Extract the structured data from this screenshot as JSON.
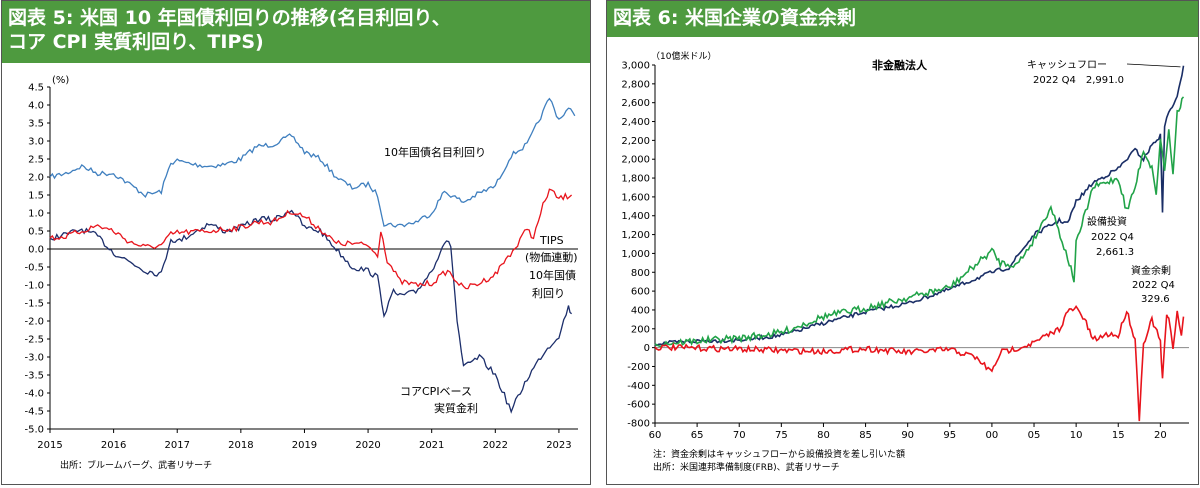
{
  "panels": [
    {
      "title_line1": "図表 5: 米国 10 年国債利回りの推移(名目利回り、",
      "title_line2": "コア CPI 実質利回り、TIPS)",
      "unit": "(%)",
      "source": "出所：ブルームバーグ、武者リサーチ"
    },
    {
      "title_line1": "図表 6: 米国企業の資金余剰",
      "unit": "（10億米ドル）",
      "subtitle": "非金融法人",
      "note": "注：資金余剰はキャッシュフローから設備投資を差し引いた額",
      "source": "出所：米国連邦準備制度(FRB)、武者リサーチ"
    }
  ],
  "chart_data": [
    {
      "type": "line",
      "title": "米国 10 年国債利回りの推移(名目利回り、コア CPI 実質利回り、TIPS)",
      "ylabel": "(%)",
      "ylim": [
        -5.0,
        4.5
      ],
      "yticks": [
        "4.5",
        "4.0",
        "3.5",
        "3.0",
        "2.5",
        "2.0",
        "1.5",
        "1.0",
        "0.5",
        "0.0",
        "-0.5",
        "-1.0",
        "-1.5",
        "-2.0",
        "-2.5",
        "-3.0",
        "-3.5",
        "-4.0",
        "-4.5",
        "-5.0"
      ],
      "xticks": [
        "2015",
        "2016",
        "2017",
        "2018",
        "2019",
        "2020",
        "2021",
        "2022",
        "2023"
      ],
      "annotations": {
        "nominal": "10年国債名目利回り",
        "tips_1": "TIPS",
        "tips_2": "(物価連動)",
        "tips_3": "10年国債",
        "tips_4": "利回り",
        "core_1": "コアCPIベース",
        "core_2": "実質金利"
      },
      "series": [
        {
          "name": "10年国債名目利回り",
          "color": "#3f7fbf",
          "x": [
            2015.0,
            2015.25,
            2015.5,
            2015.75,
            2016.0,
            2016.25,
            2016.5,
            2016.75,
            2016.9,
            2017.0,
            2017.25,
            2017.5,
            2017.75,
            2018.0,
            2018.25,
            2018.5,
            2018.8,
            2019.0,
            2019.25,
            2019.5,
            2019.75,
            2020.0,
            2020.15,
            2020.25,
            2020.5,
            2020.75,
            2021.0,
            2021.2,
            2021.5,
            2021.75,
            2022.0,
            2022.25,
            2022.5,
            2022.75,
            2022.85,
            2023.0,
            2023.15,
            2023.25
          ],
          "y": [
            2.0,
            2.1,
            2.3,
            2.1,
            2.1,
            1.8,
            1.5,
            1.6,
            2.4,
            2.45,
            2.35,
            2.3,
            2.35,
            2.5,
            2.85,
            2.9,
            3.15,
            2.7,
            2.5,
            2.0,
            1.7,
            1.8,
            1.5,
            0.7,
            0.65,
            0.75,
            1.0,
            1.6,
            1.3,
            1.55,
            1.75,
            2.6,
            2.9,
            3.8,
            4.2,
            3.6,
            3.9,
            3.7
          ]
        },
        {
          "name": "コアCPIベース実質金利",
          "color": "#1c2e6b",
          "x": [
            2015.0,
            2015.25,
            2015.5,
            2015.75,
            2016.0,
            2016.2,
            2016.5,
            2016.75,
            2016.9,
            2017.0,
            2017.5,
            2017.75,
            2018.0,
            2018.3,
            2018.5,
            2018.8,
            2019.0,
            2019.25,
            2019.5,
            2019.75,
            2020.0,
            2020.15,
            2020.25,
            2020.4,
            2020.5,
            2020.75,
            2021.0,
            2021.2,
            2021.3,
            2021.4,
            2021.5,
            2021.75,
            2022.0,
            2022.25,
            2022.5,
            2022.75,
            2023.0,
            2023.15,
            2023.2
          ],
          "y": [
            0.3,
            0.4,
            0.55,
            0.35,
            -0.1,
            -0.3,
            -0.6,
            -0.7,
            0.3,
            0.2,
            0.7,
            0.5,
            0.6,
            0.85,
            0.8,
            1.1,
            0.6,
            0.5,
            0.0,
            -0.5,
            -0.6,
            -0.8,
            -1.8,
            -1.2,
            -1.3,
            -1.2,
            -0.6,
            0.2,
            0.1,
            -2.0,
            -3.3,
            -3.0,
            -3.5,
            -4.5,
            -3.6,
            -2.9,
            -2.4,
            -1.6,
            -1.8
          ]
        },
        {
          "name": "TIPS(物価連動)10年国債利回り",
          "color": "#e8141c",
          "x": [
            2015.0,
            2015.25,
            2015.5,
            2015.75,
            2016.0,
            2016.25,
            2016.5,
            2016.75,
            2016.9,
            2017.0,
            2017.5,
            2018.0,
            2018.25,
            2018.5,
            2018.8,
            2019.0,
            2019.25,
            2019.5,
            2019.75,
            2020.0,
            2020.15,
            2020.2,
            2020.3,
            2020.5,
            2020.75,
            2021.0,
            2021.25,
            2021.5,
            2021.75,
            2022.0,
            2022.2,
            2022.35,
            2022.5,
            2022.6,
            2022.75,
            2022.85,
            2023.0,
            2023.2
          ],
          "y": [
            0.3,
            0.35,
            0.5,
            0.65,
            0.5,
            0.2,
            0.05,
            0.1,
            0.4,
            0.45,
            0.5,
            0.6,
            0.75,
            0.75,
            1.05,
            0.9,
            0.55,
            0.15,
            0.15,
            0.1,
            -0.2,
            0.55,
            -0.3,
            -0.9,
            -1.0,
            -0.95,
            -0.6,
            -1.1,
            -0.95,
            -0.7,
            -0.2,
            0.1,
            0.6,
            0.3,
            1.2,
            1.65,
            1.4,
            1.5
          ]
        }
      ]
    },
    {
      "type": "line",
      "title": "米国企業の資金余剰",
      "subtitle": "非金融法人",
      "ylabel": "（10億米ドル）",
      "ylim": [
        -800,
        3000
      ],
      "yticks": [
        "3,000",
        "2,800",
        "2,600",
        "2,400",
        "2,200",
        "2,000",
        "1,800",
        "1,600",
        "1,400",
        "1,200",
        "1,000",
        "800",
        "600",
        "400",
        "200",
        "0",
        "-200",
        "-400",
        "-600",
        "-800"
      ],
      "xticks": [
        "60",
        "65",
        "70",
        "75",
        "80",
        "85",
        "90",
        "95",
        "00",
        "05",
        "10",
        "15",
        "20"
      ],
      "annotations": {
        "cf_label": "キャッシュフロー",
        "cf_value": "2022 Q4　2,991.0",
        "capex_label": "設備投資",
        "capex_q": "2022 Q4",
        "capex_value": "2,661.3",
        "surplus_label": "資金余剰",
        "surplus_q": "2022 Q4",
        "surplus_value": "329.6"
      },
      "series": [
        {
          "name": "キャッシュフロー",
          "color": "#1a2e66",
          "x": [
            1960,
            1965,
            1970,
            1975,
            1980,
            1985,
            1990,
            1995,
            2000,
            2002,
            2005,
            2008,
            2009,
            2010,
            2012,
            2015,
            2017,
            2018,
            2019,
            2020,
            2020.25,
            2020.5,
            2021,
            2022,
            2022.75
          ],
          "y": [
            40,
            70,
            80,
            130,
            260,
            380,
            470,
            620,
            800,
            850,
            1200,
            1350,
            1320,
            1550,
            1750,
            1900,
            2100,
            2000,
            2150,
            2250,
            1450,
            2350,
            2500,
            2650,
            2991
          ]
        },
        {
          "name": "設備投資",
          "color": "#21a348",
          "x": [
            1960,
            1965,
            1970,
            1975,
            1980,
            1985,
            1990,
            1995,
            2000,
            2001,
            2003,
            2005,
            2007,
            2009,
            2009.75,
            2010,
            2012,
            2015,
            2016,
            2017,
            2018,
            2019,
            2019.5,
            2020,
            2020.5,
            2021,
            2021.5,
            2022,
            2022.75
          ],
          "y": [
            40,
            70,
            100,
            160,
            330,
            420,
            530,
            640,
            1030,
            900,
            880,
            1150,
            1500,
            950,
            720,
            1100,
            1700,
            1800,
            1450,
            1700,
            2100,
            1900,
            1650,
            2200,
            1900,
            2300,
            1850,
            2500,
            2661.3
          ]
        },
        {
          "name": "資金余剰",
          "color": "#e8141c",
          "x": [
            1960,
            1965,
            1970,
            1975,
            1980,
            1985,
            1990,
            1995,
            1998,
            2000,
            2001,
            2002,
            2005,
            2008,
            2009,
            2010,
            2011,
            2012,
            2014,
            2015,
            2016,
            2017,
            2017.5,
            2018,
            2019,
            2020,
            2020.25,
            2020.75,
            2021,
            2021.5,
            2022,
            2022.5,
            2022.75
          ],
          "y": [
            5,
            -5,
            -15,
            -30,
            -40,
            -10,
            -50,
            -20,
            -100,
            -260,
            -50,
            -30,
            50,
            200,
            380,
            420,
            300,
            80,
            150,
            120,
            400,
            80,
            -750,
            50,
            300,
            60,
            -340,
            350,
            300,
            -20,
            410,
            120,
            329.6
          ]
        }
      ]
    }
  ]
}
